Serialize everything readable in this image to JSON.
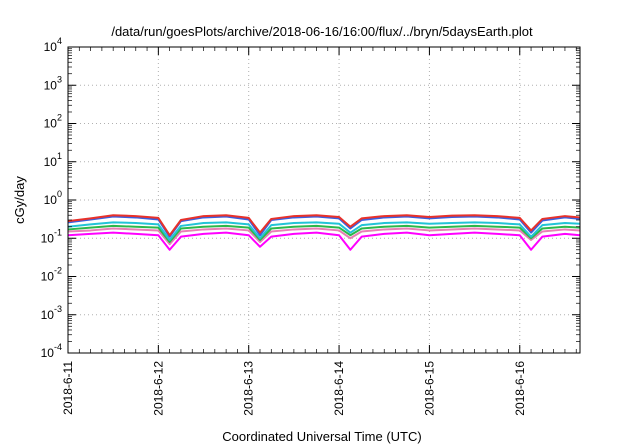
{
  "chart_data": {
    "type": "line",
    "title": "/data/run/goesPlots/archive/2018-06-16/16:00/flux/../bryn/5daysEarth.plot",
    "xlabel": "Coordinated Universal Time (UTC)",
    "ylabel": "cGy/day",
    "yscale": "log",
    "ylim": [
      0.0001,
      10000
    ],
    "xlim": [
      "2018-06-11T00:00",
      "2018-06-16T16:00"
    ],
    "grid": true,
    "x_ticks": [
      "2018-6-11",
      "2018-6-12",
      "2018-6-13",
      "2018-6-14",
      "2018-6-15",
      "2018-6-16"
    ],
    "y_ticks": [
      {
        "base": "10",
        "exp": "4",
        "value": 10000
      },
      {
        "base": "10",
        "exp": "3",
        "value": 1000
      },
      {
        "base": "10",
        "exp": "2",
        "value": 100
      },
      {
        "base": "10",
        "exp": "1",
        "value": 10
      },
      {
        "base": "10",
        "exp": "0",
        "value": 1
      },
      {
        "base": "10",
        "exp": "-1",
        "value": 0.1
      },
      {
        "base": "10",
        "exp": "-2",
        "value": 0.01
      },
      {
        "base": "10",
        "exp": "-3",
        "value": 0.001
      },
      {
        "base": "10",
        "exp": "-4",
        "value": 0.0001
      }
    ],
    "x": [
      "2018-06-11T00:00",
      "2018-06-11T06:00",
      "2018-06-11T12:00",
      "2018-06-11T18:00",
      "2018-06-12T00:00",
      "2018-06-12T03:00",
      "2018-06-12T06:00",
      "2018-06-12T12:00",
      "2018-06-12T18:00",
      "2018-06-13T00:00",
      "2018-06-13T03:00",
      "2018-06-13T06:00",
      "2018-06-13T12:00",
      "2018-06-13T18:00",
      "2018-06-14T00:00",
      "2018-06-14T03:00",
      "2018-06-14T06:00",
      "2018-06-14T12:00",
      "2018-06-14T18:00",
      "2018-06-15T00:00",
      "2018-06-15T06:00",
      "2018-06-15T12:00",
      "2018-06-15T18:00",
      "2018-06-16T00:00",
      "2018-06-16T03:00",
      "2018-06-16T06:00",
      "2018-06-16T12:00",
      "2018-06-16T16:00"
    ],
    "series": [
      {
        "color": "#e8312a",
        "values": [
          0.28,
          0.33,
          0.4,
          0.38,
          0.34,
          0.12,
          0.3,
          0.38,
          0.4,
          0.34,
          0.14,
          0.32,
          0.38,
          0.4,
          0.36,
          0.2,
          0.33,
          0.38,
          0.4,
          0.36,
          0.39,
          0.4,
          0.38,
          0.34,
          0.16,
          0.32,
          0.38,
          0.35
        ]
      },
      {
        "color": "#3a5fe0",
        "values": [
          0.26,
          0.31,
          0.37,
          0.35,
          0.31,
          0.11,
          0.28,
          0.35,
          0.37,
          0.31,
          0.12,
          0.3,
          0.35,
          0.37,
          0.33,
          0.18,
          0.3,
          0.35,
          0.37,
          0.33,
          0.36,
          0.37,
          0.35,
          0.31,
          0.14,
          0.29,
          0.35,
          0.32
        ]
      },
      {
        "color": "#22c4d6",
        "values": [
          0.2,
          0.23,
          0.26,
          0.25,
          0.23,
          0.09,
          0.21,
          0.25,
          0.26,
          0.23,
          0.1,
          0.22,
          0.25,
          0.26,
          0.24,
          0.14,
          0.22,
          0.25,
          0.26,
          0.24,
          0.25,
          0.26,
          0.25,
          0.23,
          0.11,
          0.22,
          0.25,
          0.24
        ]
      },
      {
        "color": "#2cb84a",
        "values": [
          0.17,
          0.19,
          0.21,
          0.2,
          0.19,
          0.08,
          0.18,
          0.2,
          0.21,
          0.19,
          0.09,
          0.18,
          0.2,
          0.21,
          0.19,
          0.12,
          0.18,
          0.2,
          0.21,
          0.19,
          0.2,
          0.21,
          0.2,
          0.19,
          0.1,
          0.18,
          0.2,
          0.19
        ]
      },
      {
        "color": "#e87fb5",
        "values": [
          0.15,
          0.16,
          0.18,
          0.17,
          0.16,
          0.07,
          0.15,
          0.17,
          0.18,
          0.16,
          0.08,
          0.15,
          0.17,
          0.18,
          0.16,
          0.1,
          0.15,
          0.17,
          0.18,
          0.16,
          0.17,
          0.18,
          0.17,
          0.16,
          0.09,
          0.15,
          0.17,
          0.16
        ]
      },
      {
        "color": "#ff00ff",
        "values": [
          0.12,
          0.13,
          0.14,
          0.13,
          0.12,
          0.05,
          0.11,
          0.13,
          0.14,
          0.12,
          0.06,
          0.11,
          0.13,
          0.14,
          0.12,
          0.05,
          0.11,
          0.13,
          0.14,
          0.12,
          0.13,
          0.14,
          0.13,
          0.12,
          0.05,
          0.11,
          0.13,
          0.12
        ]
      }
    ]
  }
}
